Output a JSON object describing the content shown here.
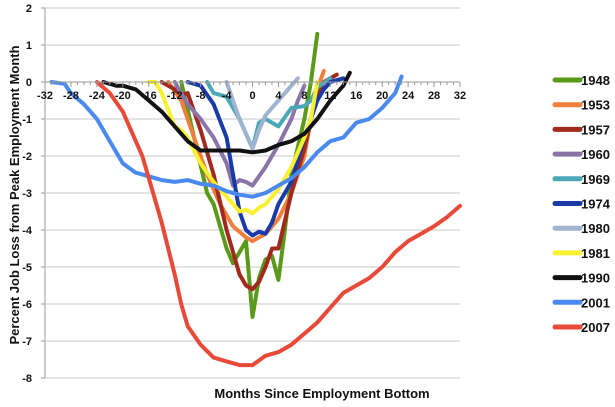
{
  "chart_data": {
    "type": "line",
    "xlabel": "Months Since Employment Bottom",
    "ylabel": "Percent Job Loss from Peak Employment Month",
    "xlim": [
      -32,
      32
    ],
    "ylim": [
      -8,
      2
    ],
    "xticks": [
      -32,
      -28,
      -24,
      -20,
      -16,
      -12,
      -8,
      -4,
      0,
      4,
      8,
      12,
      16,
      20,
      24,
      28,
      32
    ],
    "yticks": [
      2,
      1,
      0,
      -1,
      -2,
      -3,
      -4,
      -5,
      -6,
      -7,
      -8
    ],
    "grid": "horizontal",
    "legend": "right",
    "series": [
      {
        "name": "1948",
        "color": "#5a9a1a",
        "points": [
          [
            -11,
            0
          ],
          [
            -9,
            -1.5
          ],
          [
            -7,
            -3.0
          ],
          [
            -6,
            -3.3
          ],
          [
            -4,
            -4.5
          ],
          [
            -3,
            -4.9
          ],
          [
            -1,
            -4.3
          ],
          [
            0,
            -6.35
          ],
          [
            1,
            -5.3
          ],
          [
            2,
            -4.8
          ],
          [
            3,
            -4.7
          ],
          [
            4,
            -5.35
          ],
          [
            5,
            -4.0
          ],
          [
            6,
            -2.5
          ],
          [
            8,
            -1.0
          ],
          [
            9,
            0.0
          ],
          [
            10,
            1.3
          ]
        ]
      },
      {
        "name": "1953",
        "color": "#f07f3c",
        "points": [
          [
            -13,
            0
          ],
          [
            -11,
            -0.5
          ],
          [
            -9,
            -1.5
          ],
          [
            -7,
            -2.5
          ],
          [
            -5,
            -3.3
          ],
          [
            -3,
            -3.9
          ],
          [
            -1,
            -4.2
          ],
          [
            0,
            -4.3
          ],
          [
            2,
            -4.1
          ],
          [
            4,
            -3.7
          ],
          [
            6,
            -3.0
          ],
          [
            8,
            -2.0
          ],
          [
            9,
            -1.0
          ],
          [
            10,
            -0.2
          ],
          [
            11,
            0.3
          ]
        ]
      },
      {
        "name": "1957",
        "color": "#a02a1e",
        "points": [
          [
            -14,
            0
          ],
          [
            -12,
            -0.2
          ],
          [
            -11,
            -0.35
          ],
          [
            -10,
            -0.3
          ],
          [
            -8,
            -1.3
          ],
          [
            -6,
            -2.5
          ],
          [
            -4,
            -4.0
          ],
          [
            -2,
            -5.2
          ],
          [
            -1,
            -5.5
          ],
          [
            0,
            -5.6
          ],
          [
            1,
            -5.4
          ],
          [
            2,
            -5.0
          ],
          [
            3,
            -4.5
          ],
          [
            4,
            -4.5
          ],
          [
            6,
            -3.0
          ],
          [
            8,
            -1.8
          ],
          [
            9,
            -1.0
          ],
          [
            10,
            -0.4
          ],
          [
            11,
            0
          ],
          [
            13,
            0.2
          ]
        ]
      },
      {
        "name": "1960",
        "color": "#8a74a8",
        "points": [
          [
            -12,
            0
          ],
          [
            -10,
            -0.6
          ],
          [
            -8,
            -1.0
          ],
          [
            -6,
            -1.5
          ],
          [
            -4,
            -2.2
          ],
          [
            -3,
            -2.8
          ],
          [
            -2,
            -2.65
          ],
          [
            -1,
            -2.7
          ],
          [
            0,
            -2.8
          ],
          [
            2,
            -2.3
          ],
          [
            4,
            -1.7
          ],
          [
            6,
            -1.0
          ],
          [
            7,
            -0.5
          ],
          [
            8,
            -0.1
          ]
        ]
      },
      {
        "name": "1969",
        "color": "#4aa8b8",
        "points": [
          [
            -7,
            0
          ],
          [
            -6,
            -0.3
          ],
          [
            -4,
            -0.4
          ],
          [
            -2,
            -1.0
          ],
          [
            -1,
            -1.4
          ],
          [
            0,
            -1.8
          ],
          [
            1,
            -1.1
          ],
          [
            2,
            -1.0
          ],
          [
            4,
            -1.2
          ],
          [
            6,
            -0.7
          ],
          [
            8,
            -0.65
          ],
          [
            9,
            -0.5
          ],
          [
            10,
            -0.15
          ],
          [
            12,
            0.1
          ]
        ]
      },
      {
        "name": "1974",
        "color": "#1a3aa8",
        "points": [
          [
            -10,
            0
          ],
          [
            -8,
            -0.1
          ],
          [
            -6,
            -0.6
          ],
          [
            -4,
            -1.5
          ],
          [
            -3,
            -2.5
          ],
          [
            -2,
            -3.5
          ],
          [
            -1,
            -4.0
          ],
          [
            0,
            -4.15
          ],
          [
            1,
            -4.05
          ],
          [
            2,
            -4.1
          ],
          [
            3,
            -3.8
          ],
          [
            4,
            -3.3
          ],
          [
            6,
            -2.7
          ],
          [
            8,
            -1.5
          ],
          [
            10,
            -0.5
          ],
          [
            11,
            -0.2
          ],
          [
            12,
            0
          ],
          [
            14,
            0.1
          ]
        ]
      },
      {
        "name": "1980",
        "color": "#a0b4d0",
        "points": [
          [
            -4,
            0
          ],
          [
            -3,
            -0.5
          ],
          [
            -2,
            -1.0
          ],
          [
            -1,
            -1.4
          ],
          [
            0,
            -1.8
          ],
          [
            1,
            -1.3
          ],
          [
            2,
            -0.9
          ],
          [
            4,
            -0.5
          ],
          [
            6,
            -0.1
          ],
          [
            7,
            0.1
          ]
        ]
      },
      {
        "name": "1981",
        "color": "#f8f030",
        "points": [
          [
            -16,
            0
          ],
          [
            -15,
            0
          ],
          [
            -14,
            -0.3
          ],
          [
            -12,
            -1.2
          ],
          [
            -11,
            -1.3
          ],
          [
            -10,
            -1.5
          ],
          [
            -8,
            -2.2
          ],
          [
            -6,
            -2.7
          ],
          [
            -4,
            -3.1
          ],
          [
            -2,
            -3.5
          ],
          [
            -1,
            -3.45
          ],
          [
            0,
            -3.55
          ],
          [
            1,
            -3.4
          ],
          [
            2,
            -3.3
          ],
          [
            4,
            -2.9
          ],
          [
            6,
            -2.3
          ],
          [
            7,
            -1.9
          ],
          [
            8,
            -1.5
          ],
          [
            9,
            -1.0
          ],
          [
            10,
            0
          ]
        ]
      },
      {
        "name": "1990",
        "color": "#111111",
        "points": [
          [
            -23,
            0
          ],
          [
            -21,
            -0.1
          ],
          [
            -20,
            -0.1
          ],
          [
            -18,
            -0.2
          ],
          [
            -16,
            -0.5
          ],
          [
            -14,
            -0.8
          ],
          [
            -12,
            -1.2
          ],
          [
            -10,
            -1.6
          ],
          [
            -8,
            -1.85
          ],
          [
            -6,
            -1.85
          ],
          [
            -4,
            -1.85
          ],
          [
            -2,
            -1.85
          ],
          [
            0,
            -1.9
          ],
          [
            2,
            -1.85
          ],
          [
            4,
            -1.7
          ],
          [
            6,
            -1.6
          ],
          [
            8,
            -1.4
          ],
          [
            10,
            -1.0
          ],
          [
            12,
            -0.5
          ],
          [
            13,
            -0.3
          ],
          [
            14,
            -0.1
          ],
          [
            15,
            0.25
          ]
        ]
      },
      {
        "name": "2001",
        "color": "#4a8af0",
        "points": [
          [
            -31,
            0
          ],
          [
            -29,
            -0.05
          ],
          [
            -28,
            -0.3
          ],
          [
            -26,
            -0.6
          ],
          [
            -24,
            -1.0
          ],
          [
            -22,
            -1.6
          ],
          [
            -20,
            -2.2
          ],
          [
            -18,
            -2.45
          ],
          [
            -16,
            -2.55
          ],
          [
            -14,
            -2.65
          ],
          [
            -12,
            -2.7
          ],
          [
            -10,
            -2.65
          ],
          [
            -8,
            -2.75
          ],
          [
            -6,
            -2.8
          ],
          [
            -4,
            -2.95
          ],
          [
            -2,
            -3.05
          ],
          [
            0,
            -3.1
          ],
          [
            2,
            -3.0
          ],
          [
            4,
            -2.8
          ],
          [
            6,
            -2.6
          ],
          [
            8,
            -2.3
          ],
          [
            10,
            -1.9
          ],
          [
            12,
            -1.6
          ],
          [
            14,
            -1.5
          ],
          [
            16,
            -1.1
          ],
          [
            18,
            -1.0
          ],
          [
            20,
            -0.7
          ],
          [
            22,
            -0.3
          ],
          [
            23,
            0.15
          ]
        ]
      },
      {
        "name": "2007",
        "color": "#e84a3a",
        "points": [
          [
            -24,
            0
          ],
          [
            -22,
            -0.3
          ],
          [
            -20,
            -0.8
          ],
          [
            -18,
            -1.6
          ],
          [
            -17,
            -2.0
          ],
          [
            -16,
            -2.6
          ],
          [
            -14,
            -3.8
          ],
          [
            -12,
            -5.2
          ],
          [
            -11,
            -6.0
          ],
          [
            -10,
            -6.6
          ],
          [
            -8,
            -7.1
          ],
          [
            -6,
            -7.45
          ],
          [
            -4,
            -7.55
          ],
          [
            -2,
            -7.65
          ],
          [
            0,
            -7.65
          ],
          [
            2,
            -7.4
          ],
          [
            4,
            -7.3
          ],
          [
            6,
            -7.1
          ],
          [
            8,
            -6.8
          ],
          [
            10,
            -6.5
          ],
          [
            12,
            -6.1
          ],
          [
            14,
            -5.7
          ],
          [
            16,
            -5.5
          ],
          [
            18,
            -5.3
          ],
          [
            20,
            -5.0
          ],
          [
            22,
            -4.6
          ],
          [
            24,
            -4.3
          ],
          [
            26,
            -4.1
          ],
          [
            28,
            -3.9
          ],
          [
            30,
            -3.65
          ],
          [
            32,
            -3.35
          ]
        ]
      }
    ]
  }
}
